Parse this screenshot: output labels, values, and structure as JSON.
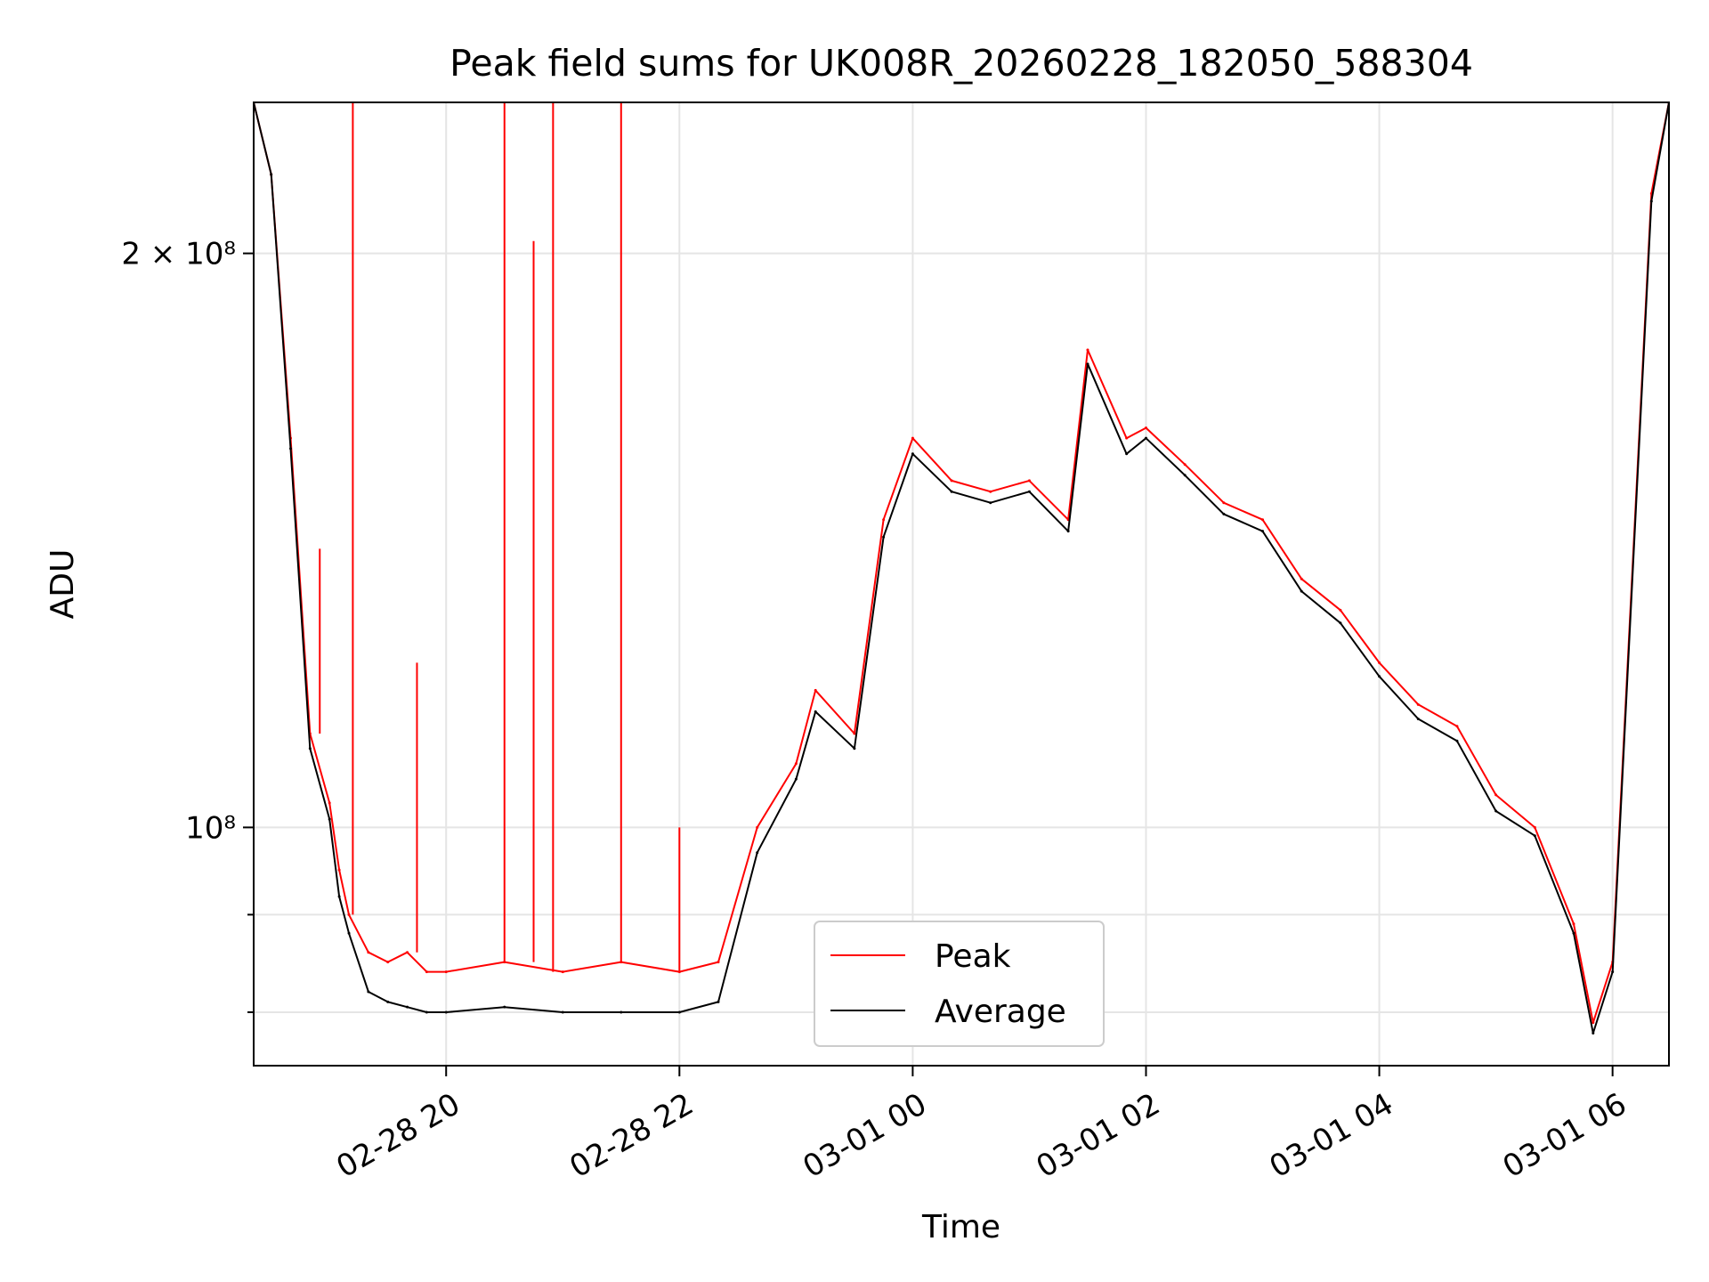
{
  "chart_data": {
    "type": "line",
    "title": "Peak field sums for UK008R_20260228_182050_588304",
    "xlabel": "Time",
    "ylabel": "ADU",
    "y_scale": "log",
    "grid": true,
    "legend_position": "lower-center",
    "x_tick_labels": [
      "02-28 20",
      "02-28 22",
      "03-01 00",
      "03-01 02",
      "03-01 04",
      "03-01 06"
    ],
    "x_tick_values": [
      "2026-02-28 20:00",
      "2026-02-28 22:00",
      "2026-03-01 00:00",
      "2026-03-01 02:00",
      "2026-03-01 04:00",
      "2026-03-01 06:00"
    ],
    "y_tick_labels": [
      "10⁸",
      "2 × 10⁸"
    ],
    "y_tick_values": [
      100000000,
      200000000
    ],
    "xlim": [
      "2026-02-28 18:21",
      "2026-03-01 06:29"
    ],
    "ylim": [
      75000000,
      240000000
    ],
    "series": [
      {
        "name": "Peak",
        "color": "#ff0000",
        "x": [
          "2026-02-28 18:21",
          "2026-02-28 18:30",
          "2026-02-28 18:40",
          "2026-02-28 18:50",
          "2026-02-28 19:00",
          "2026-02-28 19:05",
          "2026-02-28 19:10",
          "2026-02-28 19:20",
          "2026-02-28 19:30",
          "2026-02-28 19:40",
          "2026-02-28 19:50",
          "2026-02-28 20:00",
          "2026-02-28 20:30",
          "2026-02-28 21:00",
          "2026-02-28 21:30",
          "2026-02-28 22:00",
          "2026-02-28 22:20",
          "2026-02-28 22:40",
          "2026-02-28 23:00",
          "2026-02-28 23:10",
          "2026-02-28 23:30",
          "2026-02-28 23:45",
          "2026-03-01 00:00",
          "2026-03-01 00:20",
          "2026-03-01 00:40",
          "2026-03-01 01:00",
          "2026-03-01 01:20",
          "2026-03-01 01:30",
          "2026-03-01 01:50",
          "2026-03-01 02:00",
          "2026-03-01 02:20",
          "2026-03-01 02:40",
          "2026-03-01 03:00",
          "2026-03-01 03:20",
          "2026-03-01 03:40",
          "2026-03-01 04:00",
          "2026-03-01 04:20",
          "2026-03-01 04:40",
          "2026-03-01 05:00",
          "2026-03-01 05:20",
          "2026-03-01 05:40",
          "2026-03-01 05:50",
          "2026-03-01 06:00",
          "2026-03-01 06:20",
          "2026-03-01 06:29"
        ],
        "values": [
          240000000,
          220000000,
          160000000,
          112000000,
          103000000,
          95000000,
          90000000,
          86000000,
          85000000,
          86000000,
          84000000,
          84000000,
          85000000,
          84000000,
          85000000,
          84000000,
          85000000,
          100000000,
          108000000,
          118000000,
          112000000,
          145000000,
          160000000,
          152000000,
          150000000,
          152000000,
          145000000,
          178000000,
          160000000,
          162000000,
          155000000,
          148000000,
          145000000,
          135000000,
          130000000,
          122000000,
          116000000,
          113000000,
          104000000,
          100000000,
          89000000,
          79000000,
          85000000,
          215000000,
          240000000
        ],
        "spikes": [
          {
            "x": "2026-02-28 19:12",
            "y": 240000000
          },
          {
            "x": "2026-02-28 20:30",
            "y": 240000000
          },
          {
            "x": "2026-02-28 20:45",
            "y": 203000000
          },
          {
            "x": "2026-02-28 20:55",
            "y": 240000000
          },
          {
            "x": "2026-02-28 21:30",
            "y": 240000000
          },
          {
            "x": "2026-02-28 18:55",
            "y": 140000000
          },
          {
            "x": "2026-02-28 19:45",
            "y": 122000000
          },
          {
            "x": "2026-02-28 22:00",
            "y": 100000000
          }
        ]
      },
      {
        "name": "Average",
        "color": "#000000",
        "x": [
          "2026-02-28 18:21",
          "2026-02-28 18:30",
          "2026-02-28 18:40",
          "2026-02-28 18:50",
          "2026-02-28 19:00",
          "2026-02-28 19:05",
          "2026-02-28 19:10",
          "2026-02-28 19:20",
          "2026-02-28 19:30",
          "2026-02-28 19:40",
          "2026-02-28 19:50",
          "2026-02-28 20:00",
          "2026-02-28 20:30",
          "2026-02-28 21:00",
          "2026-02-28 21:30",
          "2026-02-28 22:00",
          "2026-02-28 22:20",
          "2026-02-28 22:40",
          "2026-02-28 23:00",
          "2026-02-28 23:10",
          "2026-02-28 23:30",
          "2026-02-28 23:45",
          "2026-03-01 00:00",
          "2026-03-01 00:20",
          "2026-03-01 00:40",
          "2026-03-01 01:00",
          "2026-03-01 01:20",
          "2026-03-01 01:30",
          "2026-03-01 01:50",
          "2026-03-01 02:00",
          "2026-03-01 02:20",
          "2026-03-01 02:40",
          "2026-03-01 03:00",
          "2026-03-01 03:20",
          "2026-03-01 03:40",
          "2026-03-01 04:00",
          "2026-03-01 04:20",
          "2026-03-01 04:40",
          "2026-03-01 05:00",
          "2026-03-01 05:20",
          "2026-03-01 05:40",
          "2026-03-01 05:50",
          "2026-03-01 06:00",
          "2026-03-01 06:20",
          "2026-03-01 06:29"
        ],
        "values": [
          240000000,
          220000000,
          158000000,
          110000000,
          101000000,
          92000000,
          88000000,
          82000000,
          81000000,
          80500000,
          80000000,
          80000000,
          80500000,
          80000000,
          80000000,
          80000000,
          81000000,
          97000000,
          106000000,
          115000000,
          110000000,
          142000000,
          157000000,
          150000000,
          148000000,
          150000000,
          143000000,
          175000000,
          157000000,
          160000000,
          153000000,
          146000000,
          143000000,
          133000000,
          128000000,
          120000000,
          114000000,
          111000000,
          102000000,
          99000000,
          88000000,
          78000000,
          84000000,
          213000000,
          240000000
        ]
      }
    ]
  }
}
